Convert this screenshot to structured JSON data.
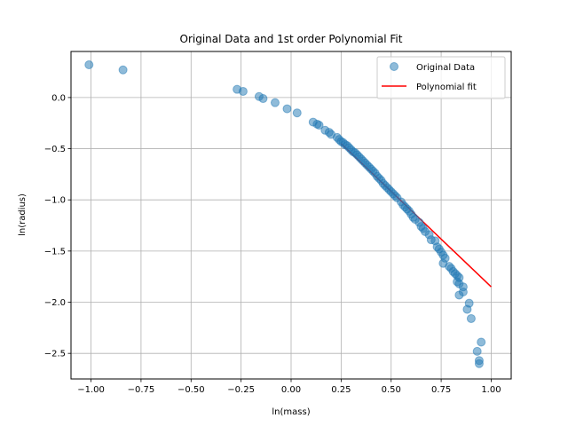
{
  "chart_data": {
    "type": "scatter",
    "title": "Original Data and 1st order Polynomial Fit",
    "xlabel": "ln(mass)",
    "ylabel": "ln(radius)",
    "xlim": [
      -1.1,
      1.1
    ],
    "ylim": [
      -2.75,
      0.45
    ],
    "xticks": [
      -1.0,
      -0.75,
      -0.5,
      -0.25,
      0.0,
      0.25,
      0.5,
      0.75,
      1.0
    ],
    "xtick_labels": [
      "−1.00",
      "−0.75",
      "−0.50",
      "−0.25",
      "0.00",
      "0.25",
      "0.50",
      "0.75",
      "1.00"
    ],
    "yticks": [
      0.0,
      -0.5,
      -1.0,
      -1.5,
      -2.0,
      -2.5
    ],
    "ytick_labels": [
      "0.0",
      "−0.5",
      "−1.0",
      "−1.5",
      "−2.0",
      "−2.5"
    ],
    "grid": true,
    "legend_position": "upper right",
    "series": [
      {
        "name": "Original Data",
        "kind": "scatter",
        "color": "#1f77b4",
        "alpha": 0.5,
        "points": [
          [
            -1.01,
            0.32
          ],
          [
            -0.84,
            0.27
          ],
          [
            -0.27,
            0.08
          ],
          [
            -0.24,
            0.06
          ],
          [
            -0.16,
            0.01
          ],
          [
            -0.14,
            -0.01
          ],
          [
            -0.08,
            -0.05
          ],
          [
            -0.02,
            -0.11
          ],
          [
            0.03,
            -0.15
          ],
          [
            0.11,
            -0.24
          ],
          [
            0.13,
            -0.26
          ],
          [
            0.14,
            -0.27
          ],
          [
            0.17,
            -0.32
          ],
          [
            0.19,
            -0.34
          ],
          [
            0.2,
            -0.36
          ],
          [
            0.23,
            -0.39
          ],
          [
            0.24,
            -0.41
          ],
          [
            0.25,
            -0.43
          ],
          [
            0.26,
            -0.44
          ],
          [
            0.27,
            -0.46
          ],
          [
            0.28,
            -0.47
          ],
          [
            0.29,
            -0.49
          ],
          [
            0.3,
            -0.51
          ],
          [
            0.31,
            -0.53
          ],
          [
            0.32,
            -0.54
          ],
          [
            0.33,
            -0.56
          ],
          [
            0.34,
            -0.58
          ],
          [
            0.35,
            -0.6
          ],
          [
            0.36,
            -0.62
          ],
          [
            0.37,
            -0.64
          ],
          [
            0.38,
            -0.66
          ],
          [
            0.39,
            -0.68
          ],
          [
            0.4,
            -0.7
          ],
          [
            0.41,
            -0.72
          ],
          [
            0.42,
            -0.74
          ],
          [
            0.43,
            -0.77
          ],
          [
            0.44,
            -0.79
          ],
          [
            0.45,
            -0.81
          ],
          [
            0.46,
            -0.84
          ],
          [
            0.47,
            -0.86
          ],
          [
            0.48,
            -0.88
          ],
          [
            0.49,
            -0.9
          ],
          [
            0.5,
            -0.92
          ],
          [
            0.51,
            -0.94
          ],
          [
            0.52,
            -0.96
          ],
          [
            0.53,
            -0.98
          ],
          [
            0.55,
            -1.02
          ],
          [
            0.56,
            -1.05
          ],
          [
            0.57,
            -1.07
          ],
          [
            0.58,
            -1.09
          ],
          [
            0.59,
            -1.11
          ],
          [
            0.6,
            -1.14
          ],
          [
            0.61,
            -1.17
          ],
          [
            0.62,
            -1.19
          ],
          [
            0.64,
            -1.22
          ],
          [
            0.65,
            -1.26
          ],
          [
            0.66,
            -1.28
          ],
          [
            0.67,
            -1.31
          ],
          [
            0.69,
            -1.34
          ],
          [
            0.7,
            -1.39
          ],
          [
            0.72,
            -1.4
          ],
          [
            0.73,
            -1.46
          ],
          [
            0.74,
            -1.48
          ],
          [
            0.75,
            -1.51
          ],
          [
            0.76,
            -1.54
          ],
          [
            0.77,
            -1.57
          ],
          [
            0.76,
            -1.62
          ],
          [
            0.79,
            -1.65
          ],
          [
            0.8,
            -1.67
          ],
          [
            0.81,
            -1.7
          ],
          [
            0.82,
            -1.72
          ],
          [
            0.83,
            -1.74
          ],
          [
            0.84,
            -1.76
          ],
          [
            0.83,
            -1.8
          ],
          [
            0.84,
            -1.82
          ],
          [
            0.86,
            -1.85
          ],
          [
            0.86,
            -1.9
          ],
          [
            0.84,
            -1.93
          ],
          [
            0.89,
            -2.01
          ],
          [
            0.88,
            -2.07
          ],
          [
            0.9,
            -2.16
          ],
          [
            0.95,
            -2.39
          ],
          [
            0.93,
            -2.48
          ],
          [
            0.94,
            -2.57
          ],
          [
            0.94,
            -2.6
          ]
        ]
      },
      {
        "name": "Polynomial fit",
        "kind": "line",
        "color": "#ff0000",
        "x": [
          0.25,
          1.0
        ],
        "y": [
          -0.45,
          -1.85
        ]
      }
    ]
  }
}
